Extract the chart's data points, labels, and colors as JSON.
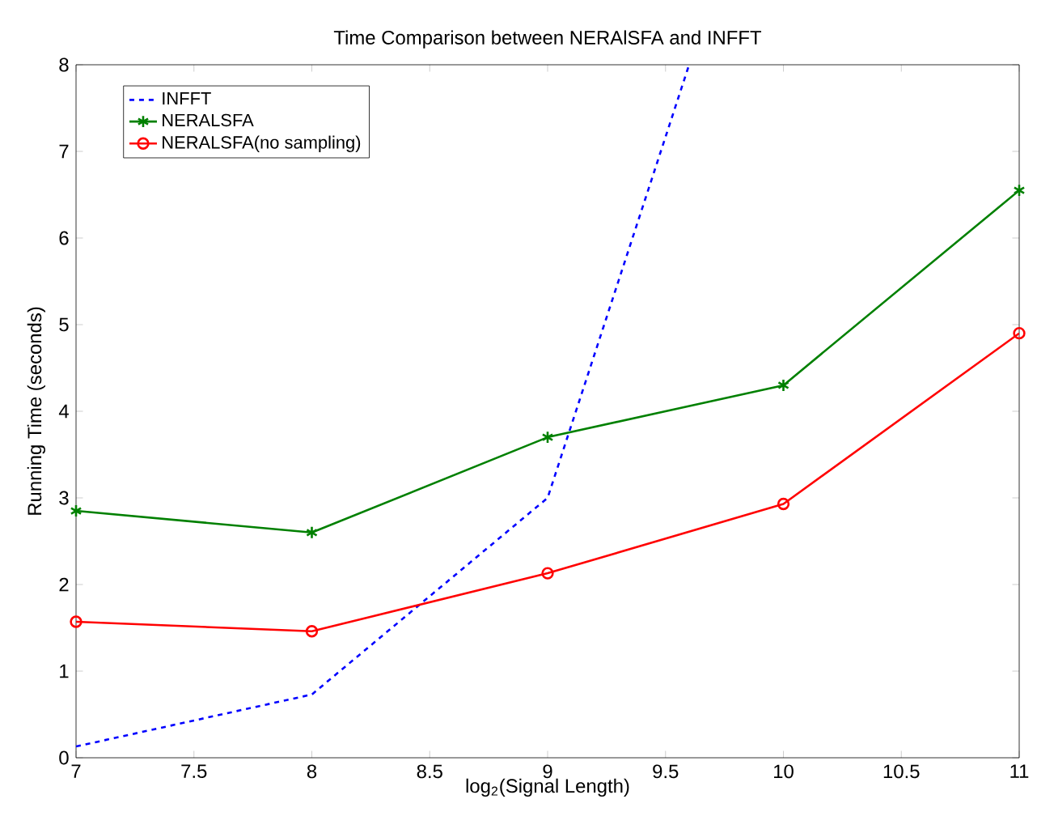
{
  "chart_data": {
    "type": "line",
    "title": "Time Comparison between NERAlSFA and INFFT",
    "xlabel": "log$_{2}$(Signal Length)",
    "ylabel": "Running Time (seconds)",
    "x": [
      7,
      8,
      9,
      10,
      11
    ],
    "series": [
      {
        "name": "INFFT",
        "color": "#0000ff",
        "x": [
          7,
          8,
          9,
          9.6
        ],
        "values": [
          0.13,
          0.73,
          3.0,
          8
        ],
        "marker": "none",
        "line_style": "dashed"
      },
      {
        "name": "NERALSFA",
        "color": "#008000",
        "values": [
          2.85,
          2.6,
          3.7,
          4.3,
          6.55
        ],
        "marker": "cross",
        "line_style": "solid"
      },
      {
        "name": "NERALSFA(no sampling)",
        "color": "#ff0000",
        "values": [
          1.57,
          1.46,
          2.13,
          2.93,
          4.9
        ],
        "marker": "circle",
        "line_style": "solid"
      }
    ],
    "xlim": [
      7,
      11
    ],
    "ylim": [
      0,
      8
    ],
    "xticks": [
      7,
      7.5,
      8,
      8.5,
      9,
      9.5,
      10,
      10.5,
      11
    ],
    "yticks": [
      0,
      1,
      2,
      3,
      4,
      5,
      6,
      7,
      8
    ],
    "legend": "top left",
    "grid": false
  }
}
